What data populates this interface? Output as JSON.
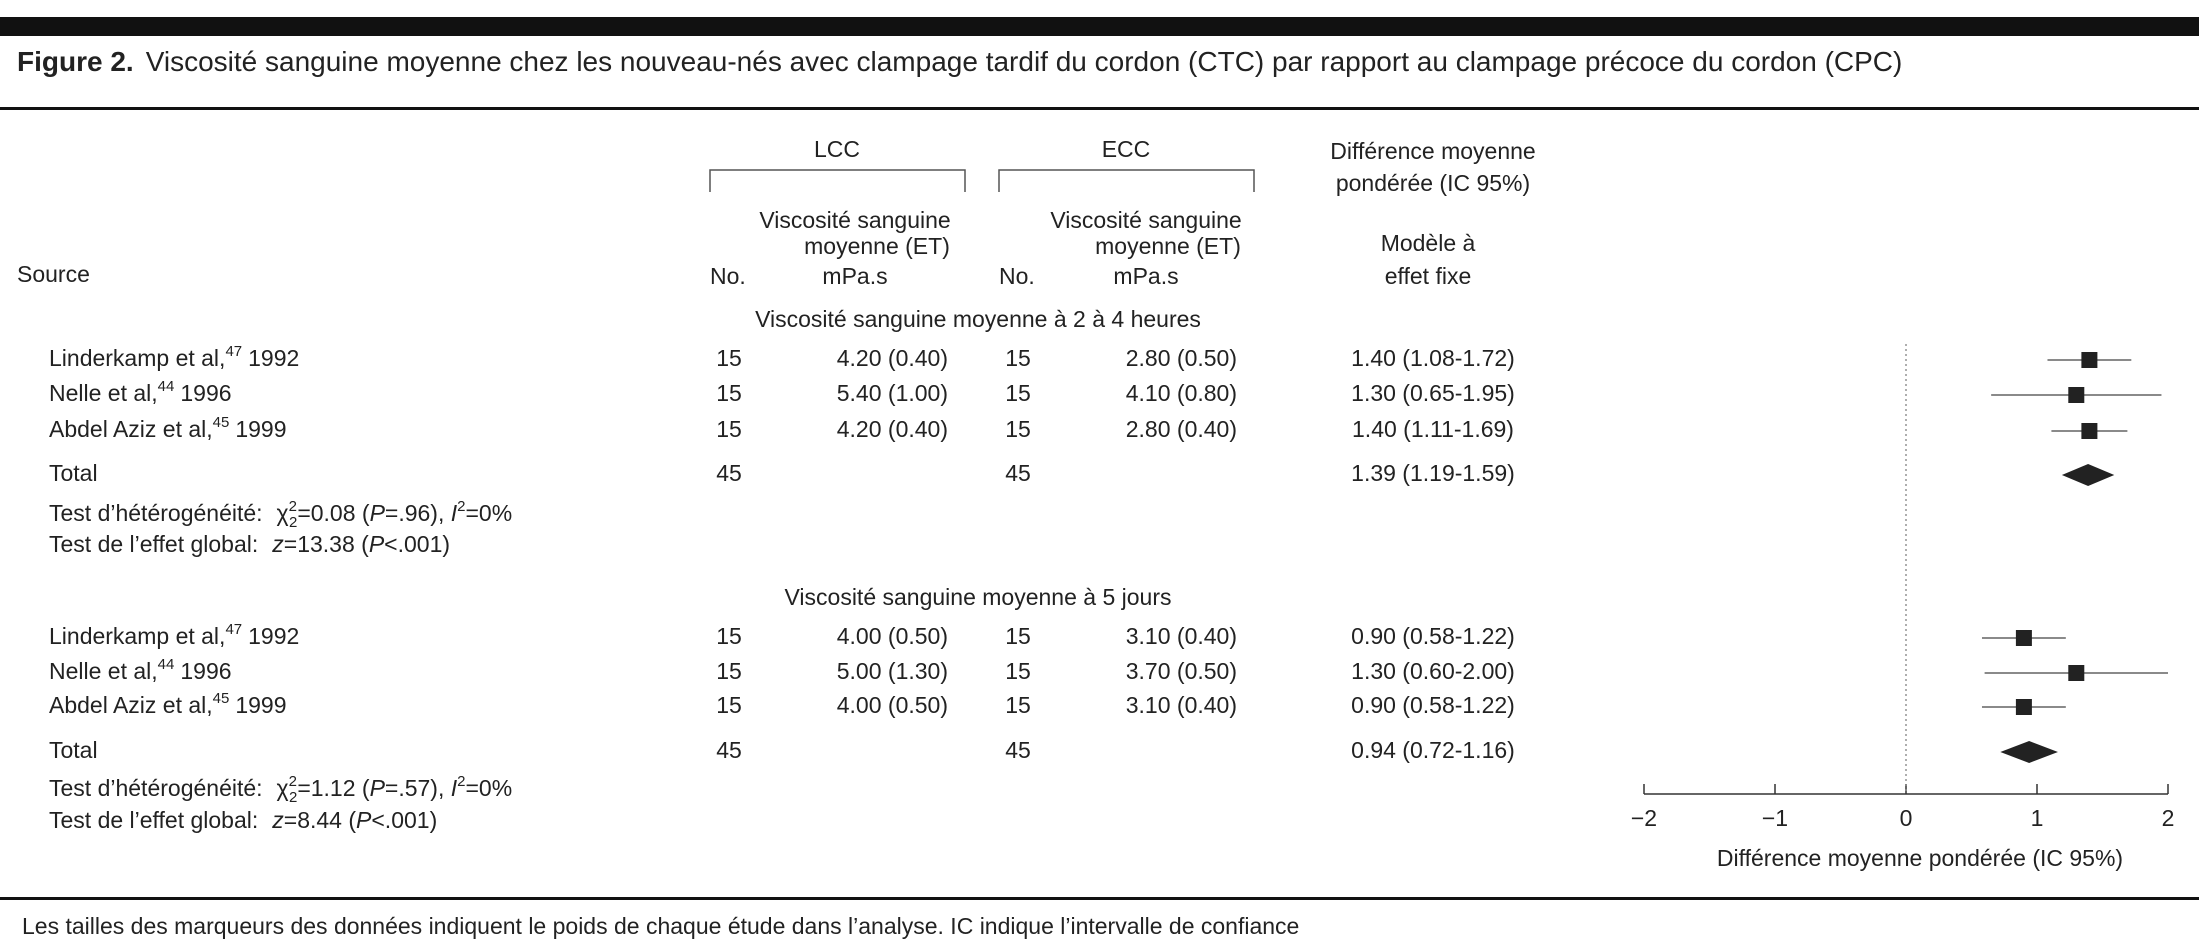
{
  "title_label": "Figure 2.",
  "title": "Viscosité sanguine moyenne chez les nouveau-nés avec clampage tardif du cordon (CTC) par rapport au clampage précoce du cordon (CPC)",
  "footnote": "Les tailles des marqueurs des données indiquent le poids de chaque étude dans l’analyse. IC indique l’intervalle de confiance",
  "chart_data": {
    "type": "forest",
    "color": "#222222",
    "headers": {
      "source": "Source",
      "lcc": "LCC",
      "ecc": "ECC",
      "mean_line1": "Viscosité sanguine",
      "mean_line2": "moyenne (ET)",
      "n": "No.",
      "unit": "mPa.s",
      "effect_line1": "Différence moyenne",
      "effect_line2": "pondérée (IC 95%)",
      "model_line1": "Modèle à",
      "model_line2": "effet fixe"
    },
    "groups": [
      {
        "title": "Viscosité sanguine moyenne à 2 à 4 heures",
        "studies": [
          {
            "name": "Linderkamp et al,",
            "ref": "47",
            "year": "1992",
            "lcc_n": 15,
            "lcc_mean": "4.20 (0.40)",
            "ecc_n": 15,
            "ecc_mean": "2.80 (0.50)",
            "effect": 1.4,
            "ci": [
              1.08,
              1.72
            ],
            "effect_label": "1.40 (1.08-1.72)"
          },
          {
            "name": "Nelle et al,",
            "ref": "44",
            "year": "1996",
            "lcc_n": 15,
            "lcc_mean": "5.40 (1.00)",
            "ecc_n": 15,
            "ecc_mean": "4.10 (0.80)",
            "effect": 1.3,
            "ci": [
              0.65,
              1.95
            ],
            "effect_label": "1.30 (0.65-1.95)"
          },
          {
            "name": "Abdel Aziz et al,",
            "ref": "45",
            "year": "1999",
            "lcc_n": 15,
            "lcc_mean": "4.20 (0.40)",
            "ecc_n": 15,
            "ecc_mean": "2.80 (0.40)",
            "effect": 1.4,
            "ci": [
              1.11,
              1.69
            ],
            "effect_label": "1.40 (1.11-1.69)"
          }
        ],
        "total": {
          "name": "Total",
          "lcc_n": 45,
          "ecc_n": 45,
          "effect": 1.39,
          "ci": [
            1.19,
            1.59
          ],
          "effect_label": "1.39 (1.19-1.59)"
        },
        "heterogeneity": [
          "Test d’hétérogénéité:",
          "χ",
          "2",
          "2",
          "=0.08 (",
          "P",
          "=.96), ",
          "I",
          "2",
          "=0%"
        ],
        "overall_effect": [
          "Test de l’effet global:",
          "z",
          "=13.38 (",
          "P",
          "<.001)"
        ]
      },
      {
        "title": "Viscosité sanguine moyenne à 5 jours",
        "studies": [
          {
            "name": "Linderkamp et al,",
            "ref": "47",
            "year": "1992",
            "lcc_n": 15,
            "lcc_mean": "4.00 (0.50)",
            "ecc_n": 15,
            "ecc_mean": "3.10 (0.40)",
            "effect": 0.9,
            "ci": [
              0.58,
              1.22
            ],
            "effect_label": "0.90 (0.58-1.22)"
          },
          {
            "name": "Nelle et al,",
            "ref": "44",
            "year": "1996",
            "lcc_n": 15,
            "lcc_mean": "5.00 (1.30)",
            "ecc_n": 15,
            "ecc_mean": "3.70 (0.50)",
            "effect": 1.3,
            "ci": [
              0.6,
              2.0
            ],
            "effect_label": "1.30 (0.60-2.00)"
          },
          {
            "name": "Abdel Aziz et al,",
            "ref": "45",
            "year": "1999",
            "lcc_n": 15,
            "lcc_mean": "4.00 (0.50)",
            "ecc_n": 15,
            "ecc_mean": "3.10 (0.40)",
            "effect": 0.9,
            "ci": [
              0.58,
              1.22
            ],
            "effect_label": "0.90 (0.58-1.22)"
          }
        ],
        "total": {
          "name": "Total",
          "lcc_n": 45,
          "ecc_n": 45,
          "effect": 0.94,
          "ci": [
            0.72,
            1.16
          ],
          "effect_label": "0.94 (0.72-1.16)"
        },
        "heterogeneity": [
          "Test d’hétérogénéité:",
          "χ",
          "2",
          "2",
          "=1.12 (",
          "P",
          "=.57), ",
          "I",
          "2",
          "=0%"
        ],
        "overall_effect": [
          "Test de l’effet global:",
          "z",
          "=8.44 (",
          "P",
          "<.001)"
        ]
      }
    ],
    "xlim": [
      -2,
      2
    ],
    "xticks": [
      {
        "value": -2,
        "label": "−2"
      },
      {
        "value": -1,
        "label": "−1"
      },
      0,
      1,
      2
    ],
    "xlabel": "Différence moyenne pondérée (IC 95%)"
  }
}
